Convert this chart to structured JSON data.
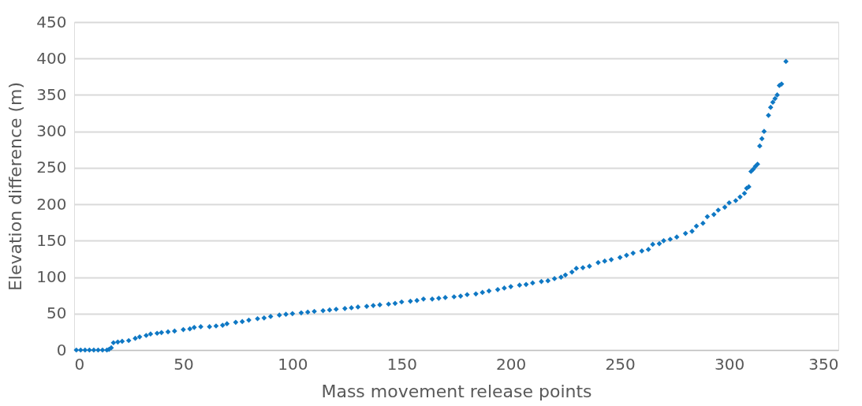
{
  "chart_data": {
    "type": "scatter",
    "xlabel": "Mass movement release points",
    "ylabel": "Elevation difference (m)",
    "xlim": [
      0,
      350
    ],
    "xticks": [
      0,
      50,
      100,
      150,
      200,
      250,
      300,
      350
    ],
    "ylim": [
      0,
      450
    ],
    "yticks": [
      0,
      50,
      100,
      150,
      200,
      250,
      300,
      350,
      400,
      450
    ],
    "grid": "y",
    "marker": "diamond",
    "series": [
      {
        "color": "#0f78c4",
        "x": [
          1,
          3,
          5,
          7,
          9,
          11,
          13,
          15,
          16,
          17,
          18,
          20,
          22,
          25,
          28,
          30,
          33,
          35,
          38,
          40,
          43,
          46,
          50,
          53,
          55,
          58,
          62,
          65,
          68,
          70,
          74,
          77,
          80,
          84,
          87,
          90,
          94,
          97,
          100,
          104,
          107,
          110,
          114,
          117,
          120,
          124,
          127,
          130,
          134,
          137,
          140,
          144,
          147,
          150,
          154,
          157,
          160,
          164,
          167,
          170,
          174,
          177,
          180,
          184,
          187,
          190,
          194,
          197,
          200,
          204,
          207,
          210,
          214,
          217,
          220,
          223,
          225,
          228,
          230,
          233,
          236,
          240,
          243,
          246,
          250,
          253,
          256,
          260,
          263,
          265,
          268,
          270,
          273,
          276,
          280,
          283,
          285,
          288,
          290,
          293,
          295,
          298,
          300,
          303,
          305,
          307,
          308,
          309,
          310,
          311,
          312,
          313,
          314,
          315,
          316,
          318,
          319,
          320,
          321,
          322,
          323,
          324,
          326
        ],
        "values": [
          0,
          0,
          0,
          0,
          0,
          0,
          0,
          0,
          1,
          3,
          10,
          11,
          12,
          13,
          16,
          18,
          20,
          22,
          23,
          24,
          25,
          26,
          28,
          29,
          31,
          32,
          32,
          33,
          34,
          36,
          38,
          39,
          41,
          43,
          44,
          46,
          48,
          49,
          50,
          51,
          52,
          53,
          54,
          55,
          56,
          57,
          58,
          59,
          60,
          61,
          62,
          63,
          64,
          66,
          67,
          68,
          70,
          70,
          71,
          72,
          73,
          74,
          76,
          77,
          79,
          81,
          83,
          85,
          87,
          89,
          90,
          92,
          94,
          95,
          98,
          100,
          103,
          107,
          112,
          113,
          115,
          120,
          122,
          124,
          127,
          130,
          133,
          136,
          138,
          145,
          146,
          150,
          152,
          155,
          160,
          163,
          170,
          174,
          183,
          186,
          192,
          196,
          202,
          205,
          210,
          215,
          222,
          224,
          245,
          248,
          252,
          255,
          280,
          290,
          300,
          322,
          333,
          340,
          345,
          350,
          363,
          365,
          396
        ]
      }
    ]
  }
}
